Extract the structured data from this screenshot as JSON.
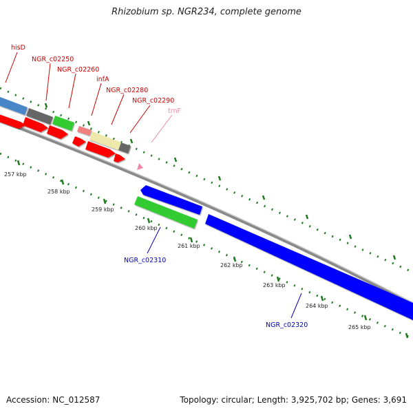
{
  "title": "Rhizobium sp. NGR234, complete genome",
  "footer": {
    "accession": "Accession: NC_012587",
    "summary": "Topology: circular; Length: 3,925,702 bp; Genes: 3,691"
  },
  "colors": {
    "backbone": "#8a8a8a",
    "tick": "#1f7a1f",
    "red_label": "#cc0000",
    "blue_label": "#0000bb",
    "pink_label": "#ee88aa",
    "gene_red": "#ff0000",
    "gene_blue": "#0000ff",
    "gene_green": "#33cc33",
    "gene_steelblue": "#4a86c8",
    "gene_gray": "#666666",
    "gene_pink": "#f08080",
    "gene_yellow": "#eee8aa"
  },
  "scale_labels": [
    "257 kbp",
    "258 kbp",
    "259 kbp",
    "260 kbp",
    "261 kbp",
    "262 kbp",
    "263 kbp",
    "264 kbp",
    "265 kbp"
  ],
  "gene_labels_top": [
    "hisD",
    "NGR_c02250",
    "NGR_c02260",
    "infA",
    "NGR_c02280",
    "NGR_c02290",
    "trnF"
  ],
  "gene_labels_bottom": [
    "NGR_c02310",
    "NGR_c02320"
  ]
}
